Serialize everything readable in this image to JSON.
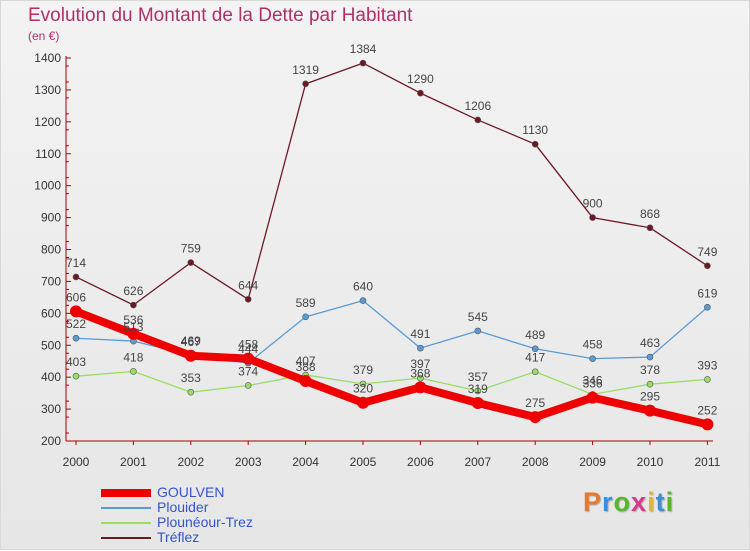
{
  "header": {
    "title": "Evolution du Montant de la Dette par Habitant",
    "subtitle": "(en €)"
  },
  "logo": {
    "text": "Proxiti",
    "letter_colors": [
      "#e8782a",
      "#3a8fd8",
      "#5ab52e",
      "#d83a8a",
      "#e8b82a",
      "#3a8fd8",
      "#5ab52e"
    ]
  },
  "chart_data": {
    "type": "line",
    "x": [
      "2000",
      "2001",
      "2002",
      "2003",
      "2004",
      "2005",
      "2006",
      "2007",
      "2008",
      "2009",
      "2010",
      "2011"
    ],
    "ylim": [
      200,
      1400
    ],
    "yticks": [
      "200",
      "300",
      "400",
      "500",
      "600",
      "700",
      "800",
      "900",
      "1000",
      "1100",
      "1200",
      "1300",
      "1400"
    ],
    "grid": false,
    "legend_position": "bottom-left",
    "series": [
      {
        "name": "Tréflez",
        "color": "#6b1a24",
        "values": [
          714,
          626,
          759,
          644,
          1319,
          1384,
          1290,
          1206,
          1130,
          900,
          868,
          749
        ]
      },
      {
        "name": "Plouider",
        "color": "#5b9bd5",
        "values": [
          522,
          513,
          469,
          444,
          589,
          640,
          491,
          545,
          489,
          458,
          463,
          619
        ]
      },
      {
        "name": "Plounéour-Trez",
        "color": "#99dd66",
        "values": [
          403,
          418,
          353,
          374,
          407,
          379,
          397,
          357,
          417,
          346,
          378,
          393
        ]
      },
      {
        "name": "GOULVEN",
        "color": "#ee0000",
        "values": [
          606,
          536,
          467,
          458,
          388,
          320,
          368,
          319,
          275,
          336,
          295,
          252
        ]
      }
    ],
    "legend": [
      "GOULVEN",
      "Plouider",
      "Plounéour-Trez",
      "Tréflez"
    ]
  }
}
